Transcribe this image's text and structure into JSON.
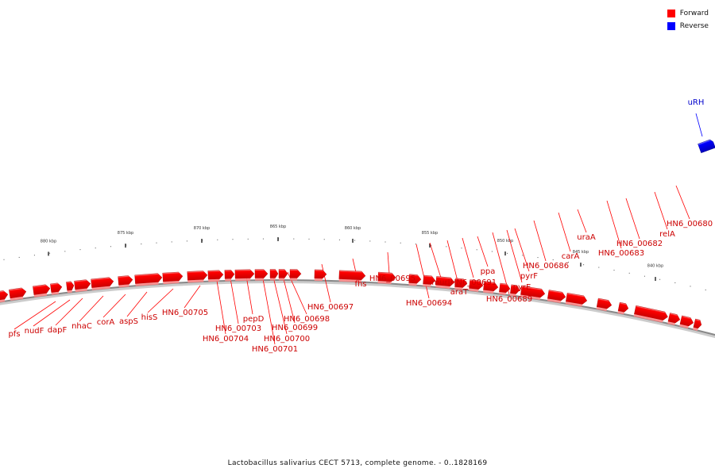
{
  "legend": {
    "forward_label": "Forward",
    "reverse_label": "Reverse",
    "forward_color": "#ff0000",
    "reverse_color": "#0000ff"
  },
  "caption": "Lactobacillus salivarius CECT 5713, complete genome. - 0..1828169",
  "colors": {
    "forward": "#ff0000",
    "reverse": "#0000ff",
    "label_forward": "#cc0000",
    "label_reverse": "#0000cc",
    "backbone": "#888888"
  },
  "ticks": [
    "880 kbp",
    "875 kbp",
    "870 kbp",
    "865 kbp",
    "860 kbp",
    "855 kbp",
    "850 kbp",
    "845 kbp",
    "840 kbp"
  ],
  "genes": [
    {
      "label": "pfs",
      "strand": "forward"
    },
    {
      "label": "nudF",
      "strand": "forward"
    },
    {
      "label": "dapF",
      "strand": "forward"
    },
    {
      "label": "nhaC",
      "strand": "forward"
    },
    {
      "label": "corA",
      "strand": "forward"
    },
    {
      "label": "aspS",
      "strand": "forward"
    },
    {
      "label": "hisS",
      "strand": "forward"
    },
    {
      "label": "HN6_00705",
      "strand": "forward"
    },
    {
      "label": "HN6_00704",
      "strand": "forward"
    },
    {
      "label": "HN6_00703",
      "strand": "forward"
    },
    {
      "label": "pepD",
      "strand": "forward"
    },
    {
      "label": "HN6_00701",
      "strand": "forward"
    },
    {
      "label": "HN6_00700",
      "strand": "forward"
    },
    {
      "label": "HN6_00699",
      "strand": "forward"
    },
    {
      "label": "HN6_00698",
      "strand": "forward"
    },
    {
      "label": "HN6_00697",
      "strand": "forward"
    },
    {
      "label": "fhs",
      "strand": "forward"
    },
    {
      "label": "HN6_00695",
      "strand": "forward"
    },
    {
      "label": "HN6_00694",
      "strand": "forward"
    },
    {
      "label": "murI",
      "strand": "forward"
    },
    {
      "label": "araT",
      "strand": "forward"
    },
    {
      "label": "HN6_00691",
      "strand": "forward"
    },
    {
      "label": "ppa",
      "strand": "forward"
    },
    {
      "label": "HN6_00689",
      "strand": "forward"
    },
    {
      "label": "pyrE",
      "strand": "forward"
    },
    {
      "label": "pyrF",
      "strand": "forward"
    },
    {
      "label": "HN6_00686",
      "strand": "forward"
    },
    {
      "label": "carA",
      "strand": "forward"
    },
    {
      "label": "uraA",
      "strand": "forward"
    },
    {
      "label": "HN6_00683",
      "strand": "forward"
    },
    {
      "label": "HN6_00682",
      "strand": "forward"
    },
    {
      "label": "relA",
      "strand": "forward"
    },
    {
      "label": "HN6_00680",
      "strand": "forward"
    },
    {
      "label": "uRH",
      "strand": "reverse"
    }
  ]
}
